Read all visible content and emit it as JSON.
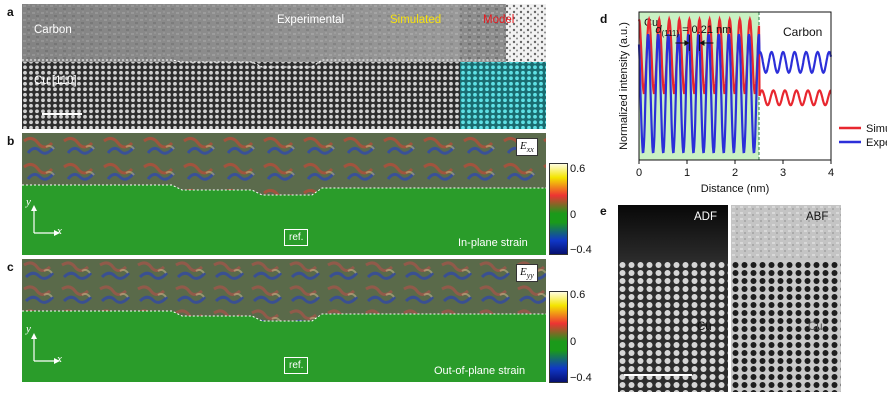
{
  "panel_labels": {
    "a": "a",
    "b": "b",
    "c": "c",
    "d": "d",
    "e": "e"
  },
  "panel_a": {
    "carbon_label": "Carbon",
    "experimental_label": "Experimental",
    "simulated_label": "Simulated",
    "model_label": "Model",
    "cu_label": "Cu [110]",
    "colors": {
      "simulated": "#f5e10f",
      "model": "#e8161c"
    }
  },
  "panel_b": {
    "component": "E",
    "subscript": "xx",
    "ref_label": "ref.",
    "strain_label": "In-plane strain",
    "axis_x": "x",
    "axis_y": "y",
    "colorbar_ticks": [
      "0.6",
      "0",
      "−0.4"
    ]
  },
  "panel_c": {
    "component": "E",
    "subscript": "yy",
    "ref_label": "ref.",
    "strain_label": "Out-of-plane strain",
    "axis_x": "x",
    "axis_y": "y",
    "colorbar_ticks": [
      "0.6",
      "0",
      "−0.4"
    ]
  },
  "panel_e": {
    "adf_label": "ADF",
    "abf_label": "ABF",
    "cu_label": "Cu"
  },
  "chart_data": {
    "type": "line",
    "xlabel": "Distance (nm)",
    "ylabel": "Normalized intensity (a.u.)",
    "xlim": [
      0,
      4
    ],
    "xticks": [
      "0",
      "1",
      "2",
      "3",
      "4"
    ],
    "regions": [
      {
        "label": "Cu",
        "x": [
          0,
          2.5
        ],
        "color": "#c9f1c3"
      },
      {
        "label": "Carbon",
        "x": [
          2.5,
          4
        ]
      }
    ],
    "annotation": {
      "symbol": "d",
      "subscript": "(111)",
      "text": "= 0.21 nm",
      "x_start": 1.05,
      "x_end": 1.26
    },
    "series": [
      {
        "name": "Simulated",
        "color": "#e8272f",
        "period_nm": 0.21,
        "cu_range": [
          0.45,
          0.95
        ],
        "carbon_level": 0.42,
        "carbon_amplitude": 0.05
      },
      {
        "name": "Experimental",
        "color": "#2c2fd9",
        "period_nm": 0.21,
        "cu_range": [
          0.05,
          0.85
        ],
        "carbon_level": 0.66,
        "carbon_amplitude": 0.07
      }
    ]
  }
}
